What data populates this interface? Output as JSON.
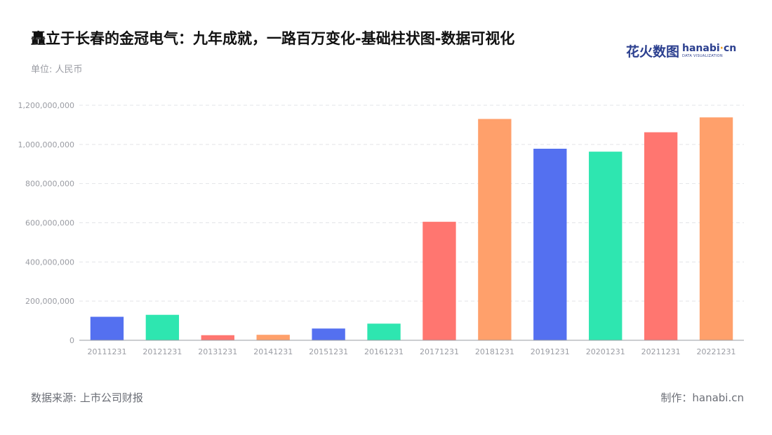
{
  "header": {
    "title": "矗立于长春的金冠电气：九年成就，一路百万变化-基础柱状图-数据可视化",
    "unit": "单位: 人民币"
  },
  "brand": {
    "name_cn": "花火数图",
    "name_en_prefix": "hanabi",
    "name_en_dot": "·",
    "name_en_suffix": "cn",
    "tagline": "DATA VISUALIZATION",
    "color": "#2b3f8f"
  },
  "footer": {
    "source": "数据来源: 上市公司财报",
    "made_by": "制作：hanabi.cn"
  },
  "chart_data": {
    "type": "bar",
    "categories": [
      "20111231",
      "20121231",
      "20131231",
      "20141231",
      "20151231",
      "20161231",
      "20171231",
      "20181231",
      "20191231",
      "20201231",
      "20211231",
      "20221231"
    ],
    "values": [
      120000000,
      130000000,
      26000000,
      28000000,
      60000000,
      85000000,
      605000000,
      1130000000,
      978000000,
      963000000,
      1062000000,
      1138000000
    ],
    "colors": [
      "#5470f0",
      "#2ee6b0",
      "#ff7670",
      "#ffa06b",
      "#5470f0",
      "#2ee6b0",
      "#ff7670",
      "#ffa06b",
      "#5470f0",
      "#2ee6b0",
      "#ff7670",
      "#ffa06b"
    ],
    "yticks": [
      "0",
      "200,000,000",
      "400,000,000",
      "600,000,000",
      "800,000,000",
      "1,000,000,000",
      "1,200,000,000"
    ],
    "ylim": [
      0,
      1200000000
    ],
    "grid": true,
    "title": "",
    "xlabel": "",
    "ylabel": ""
  }
}
